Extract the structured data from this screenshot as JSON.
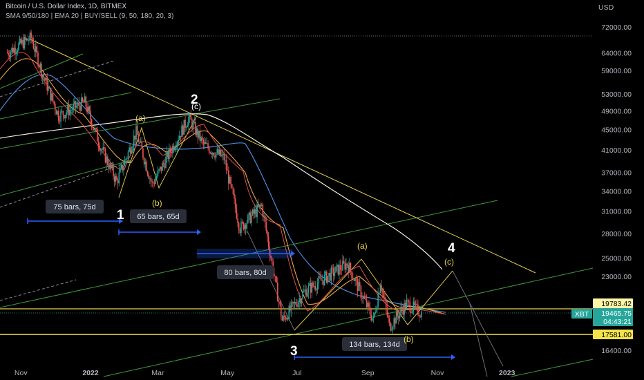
{
  "header": {
    "title": "Bitcoin / U.S. Dollar Index, 1D, BITMEX",
    "indicators": "SMA 9/50/180 | EMA 20 | BUY/SELL (9, 50, 180, 20, 3)",
    "currency": "USD"
  },
  "chart_data": {
    "type": "candlestick",
    "title": "Bitcoin / U.S. Dollar Index, 1D, BITMEX",
    "ylabel": "USD",
    "y_scale": "log",
    "x_ticks": [
      "Nov",
      "2022",
      "Mar",
      "May",
      "Jul",
      "Sep",
      "Nov",
      "2023"
    ],
    "y_ticks": [
      72000,
      64000,
      59000,
      53000,
      49000,
      45000,
      41000,
      37000,
      34000,
      31000,
      28000,
      25000,
      23000,
      19783.42,
      19465.75,
      16400
    ],
    "price_labels": [
      {
        "name": "level-upper",
        "value": "19783.42",
        "color": "#fff6a8"
      },
      {
        "name": "current-price",
        "value": "19465.75",
        "color": "#26a69a",
        "symbol": "XBT",
        "countdown": "04:43:21"
      },
      {
        "name": "level-lower",
        "value": "17581.00",
        "color": "#fff6a8"
      }
    ],
    "horizontal_levels": [
      19783.42,
      17581.0
    ],
    "series": [
      {
        "name": "price",
        "points": [
          [
            "2021-10-20",
            64000
          ],
          [
            "2021-11-10",
            68500
          ],
          [
            "2021-11-20",
            58000
          ],
          [
            "2021-12-04",
            48000
          ],
          [
            "2021-12-27",
            51000
          ],
          [
            "2022-01-10",
            41500
          ],
          [
            "2022-01-24",
            35500
          ],
          [
            "2022-02-10",
            44500
          ],
          [
            "2022-02-24",
            35000
          ],
          [
            "2022-03-28",
            47500
          ],
          [
            "2022-04-10",
            42000
          ],
          [
            "2022-04-28",
            39500
          ],
          [
            "2022-05-12",
            28700
          ],
          [
            "2022-05-31",
            31800
          ],
          [
            "2022-06-18",
            18800
          ],
          [
            "2022-07-08",
            21500
          ],
          [
            "2022-08-14",
            24400
          ],
          [
            "2022-09-06",
            18800
          ],
          [
            "2022-09-12",
            22500
          ],
          [
            "2022-09-20",
            18300
          ],
          [
            "2022-10-05",
            20300
          ],
          [
            "2022-10-18",
            19465.75
          ]
        ]
      }
    ],
    "annotations": {
      "waves": [
        {
          "label": "1",
          "style": "big"
        },
        {
          "label": "2",
          "style": "big"
        },
        {
          "label": "3",
          "style": "big"
        },
        {
          "label": "4",
          "style": "big"
        },
        {
          "label": "(a)",
          "style": "small"
        },
        {
          "label": "(b)",
          "style": "small"
        },
        {
          "label": "(c)",
          "style": "white"
        },
        {
          "label": "(a)",
          "style": "small"
        },
        {
          "label": "(b)",
          "style": "small"
        },
        {
          "label": "(c)",
          "style": "small"
        }
      ],
      "ranges": [
        "75 bars, 75d",
        "65 bars, 65d",
        "80 bars, 80d",
        "134 bars, 134d"
      ]
    },
    "grid": false,
    "legend": "none"
  }
}
